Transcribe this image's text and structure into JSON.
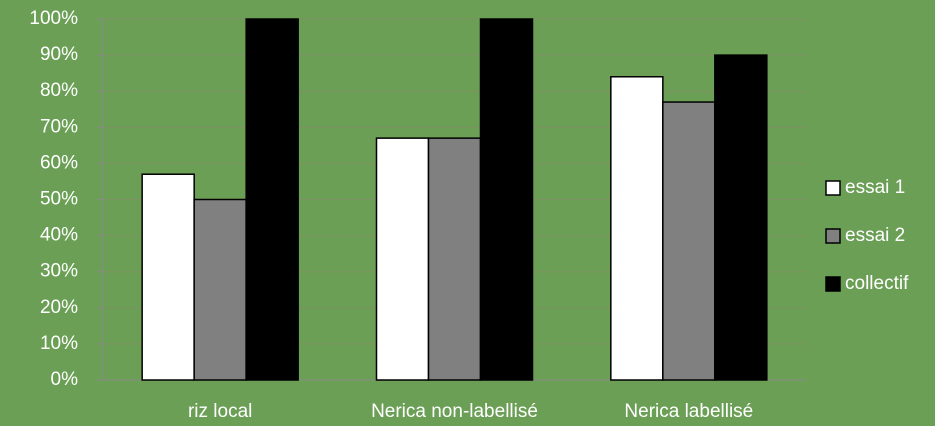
{
  "chart_data": {
    "type": "bar",
    "categories": [
      "riz local",
      "Nerica non-labellisé",
      "Nerica labellisé"
    ],
    "series": [
      {
        "name": "essai 1",
        "color": "#ffffff",
        "values": [
          57,
          67,
          84
        ]
      },
      {
        "name": "essai 2",
        "color": "#808080",
        "values": [
          50,
          67,
          77
        ]
      },
      {
        "name": "collectif",
        "color": "#000000",
        "values": [
          100,
          100,
          90
        ]
      }
    ],
    "ylim": [
      0,
      100
    ],
    "yticks": [
      {
        "value": 0,
        "label": "0%"
      },
      {
        "value": 10,
        "label": "10%"
      },
      {
        "value": 20,
        "label": "20%"
      },
      {
        "value": 30,
        "label": "30%"
      },
      {
        "value": 40,
        "label": "40%"
      },
      {
        "value": 50,
        "label": "50%"
      },
      {
        "value": 60,
        "label": "60%"
      },
      {
        "value": 70,
        "label": "70%"
      },
      {
        "value": 80,
        "label": "80%"
      },
      {
        "value": 90,
        "label": "90%"
      },
      {
        "value": 100,
        "label": "100%"
      }
    ],
    "grid": true,
    "legend": "right"
  }
}
